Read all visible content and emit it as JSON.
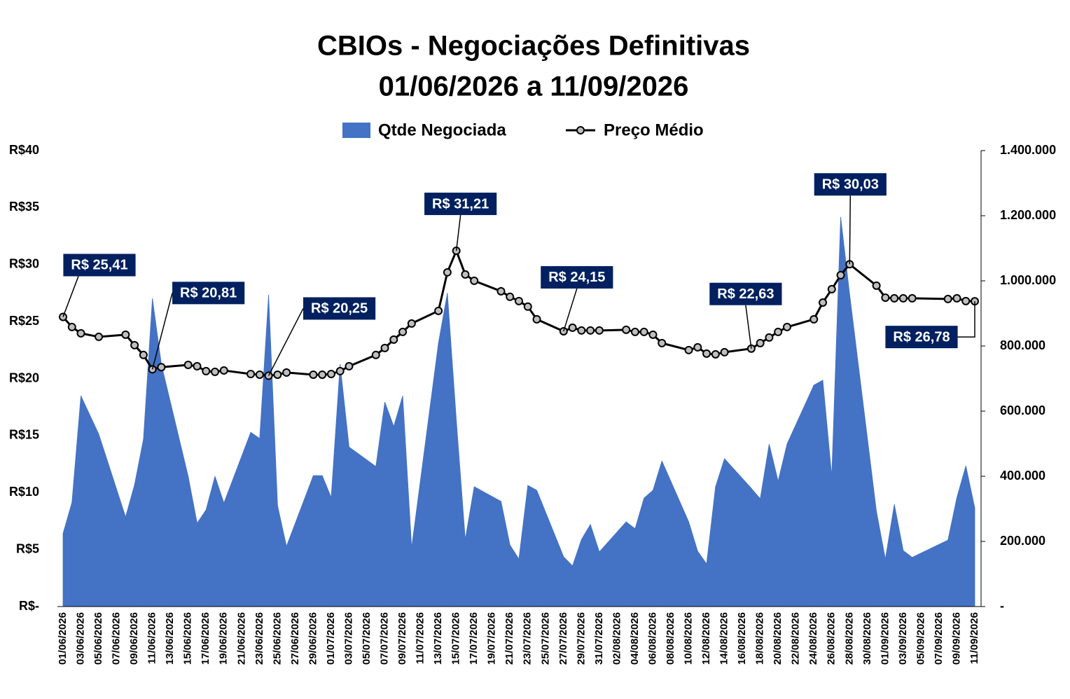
{
  "chart_data": {
    "type": "combo",
    "title": "CBIOs - Negociações Definitivas",
    "subtitle": "01/06/2026 a 11/09/2026",
    "categories": [
      "01/06/2026",
      null,
      "03/06/2026",
      null,
      "05/06/2026",
      null,
      "07/06/2026",
      null,
      "09/06/2026",
      null,
      "11/06/2026",
      null,
      "13/06/2026",
      null,
      "15/06/2026",
      null,
      "17/06/2026",
      null,
      "19/06/2026",
      null,
      "21/06/2026",
      null,
      "23/06/2026",
      null,
      "25/06/2026",
      null,
      "27/06/2026",
      null,
      "29/06/2026",
      null,
      "01/07/2026",
      null,
      "03/07/2026",
      null,
      "05/07/2026",
      null,
      "07/07/2026",
      null,
      "09/07/2026",
      null,
      "11/07/2026",
      null,
      "13/07/2026",
      null,
      "15/07/2026",
      null,
      "17/07/2026",
      null,
      "19/07/2026",
      null,
      "21/07/2026",
      null,
      "23/07/2026",
      null,
      "25/07/2026",
      null,
      "27/07/2026",
      null,
      "29/07/2026",
      null,
      "31/07/2026",
      null,
      "02/08/2026",
      null,
      "04/08/2026",
      null,
      "06/08/2026",
      null,
      "08/08/2026",
      null,
      "10/08/2026",
      null,
      "12/08/2026",
      null,
      "14/08/2026",
      null,
      "16/08/2026",
      null,
      "18/08/2026",
      null,
      "20/08/2026",
      null,
      "22/08/2026",
      null,
      "24/08/2026",
      null,
      "26/08/2026",
      null,
      "28/08/2026",
      null,
      "30/08/2026",
      null,
      "01/09/2026",
      null,
      "03/09/2026",
      null,
      "05/09/2026",
      null,
      "07/09/2026",
      null,
      "09/09/2026",
      null,
      "11/09/2026"
    ],
    "ylim": [
      0,
      40
    ],
    "yticks": [
      {
        "value": 0,
        "label": "R$-"
      },
      {
        "value": 5,
        "label": "R$5"
      },
      {
        "value": 10,
        "label": "R$10"
      },
      {
        "value": 15,
        "label": "R$15"
      },
      {
        "value": 20,
        "label": "R$20"
      },
      {
        "value": 25,
        "label": "R$25"
      },
      {
        "value": 30,
        "label": "R$30"
      },
      {
        "value": 35,
        "label": "R$35"
      },
      {
        "value": 40,
        "label": "R$40"
      }
    ],
    "y2lim": [
      0,
      1400000
    ],
    "y2ticks": [
      {
        "value": 0,
        "label": "-"
      },
      {
        "value": 200000,
        "label": "200.000"
      },
      {
        "value": 400000,
        "label": "400.000"
      },
      {
        "value": 600000,
        "label": "600.000"
      },
      {
        "value": 800000,
        "label": "800.000"
      },
      {
        "value": 1000000,
        "label": "1.000.000"
      },
      {
        "value": 1200000,
        "label": "1.200.000"
      },
      {
        "value": 1400000,
        "label": "1.400.000"
      }
    ],
    "series": [
      {
        "name": "Qtde Negociada",
        "type": "area",
        "axis": "y2",
        "color": "#4472c4",
        "values": [
          224000,
          320000,
          647000,
          null,
          529000,
          null,
          null,
          275000,
          374000,
          514000,
          946000,
          744000,
          null,
          null,
          400000,
          256000,
          297000,
          400000,
          318000,
          null,
          null,
          535000,
          516000,
          957000,
          310000,
          185000,
          null,
          null,
          402000,
          402000,
          335000,
          744000,
          490000,
          null,
          null,
          430000,
          628000,
          553000,
          647000,
          181000,
          null,
          null,
          809000,
          963000,
          572000,
          206000,
          368000,
          null,
          null,
          323000,
          189000,
          146000,
          372000,
          357000,
          null,
          null,
          153000,
          125000,
          206000,
          252000,
          168000,
          null,
          null,
          260000,
          239000,
          333000,
          357000,
          447000,
          null,
          null,
          260000,
          170000,
          131000,
          368000,
          454000,
          null,
          null,
          363000,
          331000,
          499000,
          385000,
          499000,
          null,
          null,
          680000,
          695000,
          400000,
          1196000,
          959000,
          null,
          null,
          292000,
          146000,
          314000,
          172000,
          151000,
          null,
          null,
          null,
          204000,
          335000,
          432000,
          303000
        ]
      },
      {
        "name": "Preço Médio",
        "type": "line",
        "color": "#000000",
        "marker_color": "#bfbfbf",
        "values": [
          25.41,
          24.52,
          23.97,
          null,
          23.66,
          null,
          null,
          23.85,
          22.93,
          22.07,
          20.81,
          21.0,
          null,
          null,
          21.2,
          21.08,
          20.65,
          20.59,
          20.71,
          null,
          null,
          20.4,
          20.34,
          20.25,
          20.34,
          20.53,
          null,
          null,
          20.34,
          20.34,
          20.4,
          20.65,
          21.08,
          null,
          null,
          22.07,
          22.68,
          23.42,
          24.09,
          24.83,
          null,
          null,
          25.94,
          29.32,
          31.21,
          29.13,
          28.58,
          null,
          null,
          27.66,
          27.17,
          26.8,
          26.31,
          25.2,
          null,
          null,
          24.15,
          24.46,
          24.22,
          24.22,
          24.22,
          null,
          null,
          24.28,
          24.09,
          24.09,
          23.85,
          23.11,
          null,
          null,
          22.5,
          22.74,
          22.19,
          22.13,
          22.31,
          null,
          null,
          22.63,
          23.11,
          23.6,
          24.09,
          24.52,
          null,
          null,
          25.2,
          26.67,
          27.84,
          29.07,
          30.03,
          null,
          null,
          28.15,
          27.1,
          27.04,
          27.04,
          27.04,
          null,
          null,
          null,
          26.98,
          27.04,
          26.8,
          26.78
        ],
        "value_labels": [
          "R$ 25,41",
          null,
          null,
          null,
          null,
          null,
          null,
          null,
          null,
          null,
          "R$ 20,81",
          null,
          null,
          null,
          null,
          null,
          null,
          null,
          null,
          null,
          null,
          null,
          null,
          "R$ 20,25",
          null,
          null,
          null,
          null,
          null,
          null,
          null,
          null,
          null,
          null,
          null,
          null,
          null,
          null,
          null,
          null,
          null,
          null,
          null,
          null,
          "R$ 31,21",
          null,
          null,
          null,
          null,
          null,
          null,
          null,
          null,
          null,
          null,
          null,
          "R$ 24,15",
          null,
          null,
          null,
          null,
          null,
          null,
          null,
          null,
          null,
          null,
          null,
          null,
          null,
          null,
          null,
          null,
          null,
          null,
          null,
          null,
          "R$ 22,63",
          null,
          null,
          null,
          null,
          null,
          null,
          null,
          null,
          null,
          null,
          "R$ 30,03",
          null,
          null,
          null,
          null,
          null,
          null,
          null,
          null,
          null,
          null,
          null,
          null,
          null,
          "R$ 26,78"
        ],
        "label_color": "#002060"
      }
    ]
  }
}
